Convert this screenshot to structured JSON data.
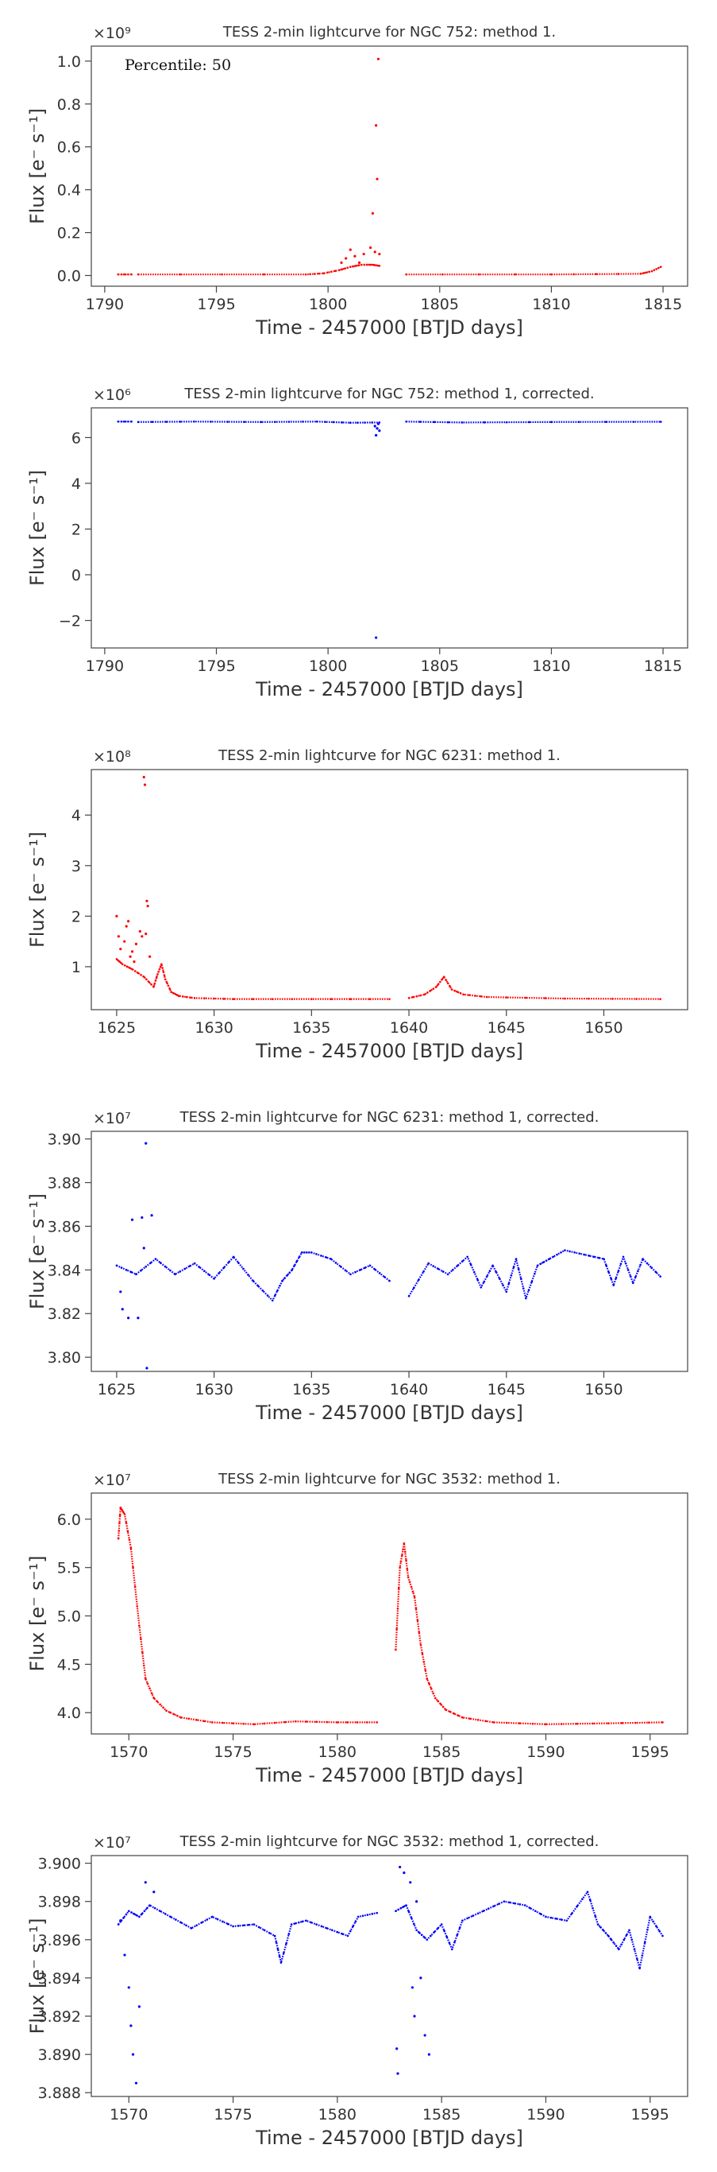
{
  "chart_data": [
    {
      "type": "scatter",
      "title": "TESS 2-min lightcurve for NGC 752: method 1.",
      "xlabel": "Time - 2457000 [BTJD days]",
      "ylabel": "Flux [e⁻ s⁻¹]",
      "multiplier": "×10⁹",
      "annotation": "Percentile: 50",
      "color": "#ff0000",
      "xlim": [
        1789.4,
        1816.1
      ],
      "ylim": [
        -0.05,
        1.07
      ],
      "xticks": [
        1790,
        1795,
        1800,
        1805,
        1810,
        1815
      ],
      "yticks": [
        0.0,
        0.2,
        0.4,
        0.6,
        0.8,
        1.0
      ],
      "ytick_labels": [
        "0.0",
        "0.2",
        "0.4",
        "0.6",
        "0.8",
        "1.0"
      ],
      "segments": [
        {
          "x": [
            1790.6,
            1791.2
          ],
          "y": [
            0.005,
            0.005
          ]
        },
        {
          "x": [
            1791.5,
            1799.0,
            1799.8,
            1800.5,
            1801.0,
            1801.5,
            1802.0,
            1802.3
          ],
          "y": [
            0.005,
            0.005,
            0.01,
            0.025,
            0.04,
            0.05,
            0.05,
            0.045
          ]
        },
        {
          "x": [
            1803.5,
            1810.0,
            1814.0,
            1814.5,
            1814.9
          ],
          "y": [
            0.005,
            0.005,
            0.008,
            0.02,
            0.04
          ]
        }
      ],
      "points": {
        "x": [
          1800.6,
          1800.8,
          1801.0,
          1801.2,
          1801.4,
          1801.6,
          1801.9,
          1802.0,
          1802.1,
          1802.15,
          1802.2,
          1802.25,
          1802.3
        ],
        "y": [
          0.06,
          0.08,
          0.12,
          0.09,
          0.06,
          0.1,
          0.13,
          0.29,
          0.11,
          0.7,
          0.45,
          1.01,
          0.1
        ]
      }
    },
    {
      "type": "scatter",
      "title": "TESS 2-min lightcurve for NGC 752: method 1, corrected.",
      "xlabel": "Time - 2457000 [BTJD days]",
      "ylabel": "Flux [e⁻ s⁻¹]",
      "multiplier": "×10⁶",
      "color": "#0000ff",
      "xlim": [
        1789.4,
        1816.1
      ],
      "ylim": [
        -3.2,
        7.3
      ],
      "xticks": [
        1790,
        1795,
        1800,
        1805,
        1810,
        1815
      ],
      "yticks": [
        -2,
        0,
        2,
        4,
        6
      ],
      "ytick_labels": [
        "−2",
        "0",
        "2",
        "4",
        "6"
      ],
      "segments": [
        {
          "x": [
            1790.6,
            1791.2
          ],
          "y": [
            6.7,
            6.7
          ]
        },
        {
          "x": [
            1791.5,
            1794.0,
            1797.0,
            1799.5,
            1801.0,
            1802.3
          ],
          "y": [
            6.68,
            6.7,
            6.68,
            6.7,
            6.65,
            6.66
          ]
        },
        {
          "x": [
            1803.5,
            1806.0,
            1810.0,
            1814.9
          ],
          "y": [
            6.7,
            6.66,
            6.68,
            6.69
          ]
        }
      ],
      "points": {
        "x": [
          1802.1,
          1802.15,
          1802.2,
          1802.25,
          1802.3,
          1802.15
        ],
        "y": [
          6.5,
          6.1,
          6.4,
          6.6,
          6.3,
          -2.75
        ]
      }
    },
    {
      "type": "scatter",
      "title": "TESS 2-min lightcurve for NGC 6231: method 1.",
      "xlabel": "Time - 2457000 [BTJD days]",
      "ylabel": "Flux [e⁻ s⁻¹]",
      "multiplier": "×10⁸",
      "color": "#ff0000",
      "xlim": [
        1623.7,
        1654.3
      ],
      "ylim": [
        0.15,
        4.9
      ],
      "xticks": [
        1625,
        1630,
        1635,
        1640,
        1645,
        1650
      ],
      "yticks": [
        1,
        2,
        3,
        4
      ],
      "ytick_labels": [
        "1",
        "2",
        "3",
        "4"
      ],
      "segments": [
        {
          "x": [
            1625.0,
            1625.3,
            1625.8,
            1626.4,
            1626.9,
            1627.1,
            1627.3,
            1627.5,
            1627.8,
            1628.2,
            1629.0,
            1631.0,
            1635.0,
            1639.0
          ],
          "y": [
            1.15,
            1.05,
            0.95,
            0.8,
            0.6,
            0.85,
            1.05,
            0.75,
            0.5,
            0.42,
            0.38,
            0.36,
            0.36,
            0.36
          ]
        },
        {
          "x": [
            1640.0,
            1640.8,
            1641.4,
            1641.8,
            1642.2,
            1642.8,
            1644.0,
            1648.0,
            1652.9
          ],
          "y": [
            0.38,
            0.45,
            0.6,
            0.8,
            0.55,
            0.45,
            0.4,
            0.37,
            0.36
          ]
        }
      ],
      "points": {
        "x": [
          1625.0,
          1625.1,
          1625.2,
          1625.4,
          1625.5,
          1625.6,
          1625.8,
          1626.0,
          1626.2,
          1626.3,
          1626.4,
          1626.45,
          1626.5,
          1626.55,
          1626.6,
          1626.7,
          1625.9,
          1625.7
        ],
        "y": [
          2.0,
          1.6,
          1.35,
          1.5,
          1.8,
          1.9,
          1.3,
          1.45,
          1.7,
          1.6,
          4.75,
          4.6,
          1.65,
          2.3,
          2.2,
          1.2,
          1.1,
          1.2
        ]
      }
    },
    {
      "type": "scatter",
      "title": "TESS 2-min lightcurve for NGC 6231: method 1, corrected.",
      "xlabel": "Time - 2457000 [BTJD days]",
      "ylabel": "Flux [e⁻ s⁻¹]",
      "multiplier": "×10⁷",
      "color": "#0000ff",
      "xlim": [
        1623.7,
        1654.3
      ],
      "ylim": [
        3.7935,
        3.9035
      ],
      "xticks": [
        1625,
        1630,
        1635,
        1640,
        1645,
        1650
      ],
      "yticks": [
        3.8,
        3.82,
        3.84,
        3.86,
        3.88,
        3.9
      ],
      "ytick_labels": [
        "3.80",
        "3.82",
        "3.84",
        "3.86",
        "3.88",
        "3.90"
      ],
      "segments": [
        {
          "x": [
            1625.0,
            1626.0,
            1627.0,
            1628.0,
            1629.0,
            1630.0,
            1631.0,
            1632.0,
            1633.0,
            1633.5,
            1634.0,
            1634.5,
            1635.0,
            1636.0,
            1637.0,
            1638.0,
            1639.0
          ],
          "y": [
            3.842,
            3.838,
            3.845,
            3.838,
            3.843,
            3.836,
            3.846,
            3.835,
            3.826,
            3.835,
            3.84,
            3.848,
            3.848,
            3.845,
            3.838,
            3.842,
            3.835
          ]
        },
        {
          "x": [
            1640.0,
            1641.0,
            1642.0,
            1643.0,
            1643.7,
            1644.3,
            1645.0,
            1645.5,
            1646.0,
            1646.6,
            1647.2,
            1648.0,
            1649.0,
            1650.0,
            1650.5,
            1651.0,
            1651.5,
            1652.0,
            1652.9
          ],
          "y": [
            3.828,
            3.843,
            3.838,
            3.846,
            3.832,
            3.842,
            3.83,
            3.845,
            3.827,
            3.842,
            3.845,
            3.849,
            3.847,
            3.845,
            3.833,
            3.846,
            3.834,
            3.845,
            3.837
          ]
        }
      ],
      "points": {
        "x": [
          1626.5,
          1626.55,
          1625.8,
          1626.1,
          1626.3,
          1625.3,
          1625.6,
          1626.8,
          1625.2,
          1626.4
        ],
        "y": [
          3.898,
          3.795,
          3.863,
          3.818,
          3.864,
          3.822,
          3.818,
          3.865,
          3.83,
          3.85
        ]
      }
    },
    {
      "type": "scatter",
      "title": "TESS 2-min lightcurve for NGC 3532: method 1.",
      "xlabel": "Time - 2457000 [BTJD days]",
      "ylabel": "Flux [e⁻ s⁻¹]",
      "multiplier": "×10⁷",
      "color": "#ff0000",
      "xlim": [
        1568.2,
        1596.8
      ],
      "ylim": [
        3.78,
        6.27
      ],
      "xticks": [
        1570,
        1575,
        1580,
        1585,
        1590,
        1595
      ],
      "yticks": [
        4.0,
        4.5,
        5.0,
        5.5,
        6.0
      ],
      "ytick_labels": [
        "4.0",
        "4.5",
        "5.0",
        "5.5",
        "6.0"
      ],
      "segments": [
        {
          "x": [
            1569.5,
            1569.6,
            1569.8,
            1570.1,
            1570.5,
            1570.8,
            1571.2,
            1571.8,
            1572.5,
            1574.0,
            1576.0,
            1578.0,
            1580.0,
            1581.9
          ],
          "y": [
            5.8,
            6.12,
            6.05,
            5.7,
            4.9,
            4.35,
            4.15,
            4.02,
            3.95,
            3.9,
            3.88,
            3.91,
            3.9,
            3.9
          ]
        },
        {
          "x": [
            1582.8,
            1583.0,
            1583.2,
            1583.4,
            1583.7,
            1584.0,
            1584.3,
            1584.7,
            1585.2,
            1586.0,
            1587.5,
            1590.0,
            1593.0,
            1595.6
          ],
          "y": [
            4.65,
            5.5,
            5.75,
            5.4,
            5.2,
            4.7,
            4.35,
            4.15,
            4.03,
            3.95,
            3.9,
            3.88,
            3.89,
            3.9
          ]
        }
      ],
      "points": {
        "x": [],
        "y": []
      }
    },
    {
      "type": "scatter",
      "title": "TESS 2-min lightcurve for NGC 3532: method 1, corrected.",
      "xlabel": "Time - 2457000 [BTJD days]",
      "ylabel": "Flux [e⁻ s⁻¹]",
      "multiplier": "×10⁷",
      "color": "#0000ff",
      "xlim": [
        1568.2,
        1596.8
      ],
      "ylim": [
        3.8878,
        3.9004
      ],
      "xticks": [
        1570,
        1575,
        1580,
        1585,
        1590,
        1595
      ],
      "yticks": [
        3.888,
        3.89,
        3.892,
        3.894,
        3.896,
        3.898,
        3.9
      ],
      "ytick_labels": [
        "3.888",
        "3.890",
        "3.892",
        "3.894",
        "3.896",
        "3.898",
        "3.900"
      ],
      "segments": [
        {
          "x": [
            1569.5,
            1570.0,
            1570.5,
            1571.0,
            1572.0,
            1573.0,
            1574.0,
            1575.0,
            1576.0,
            1577.0,
            1577.3,
            1577.8,
            1578.5,
            1579.5,
            1580.5,
            1581.0,
            1581.9
          ],
          "y": [
            3.8968,
            3.8975,
            3.8972,
            3.8978,
            3.8972,
            3.8966,
            3.8972,
            3.8967,
            3.8968,
            3.8962,
            3.8948,
            3.8968,
            3.897,
            3.8966,
            3.8962,
            3.8972,
            3.8974
          ]
        },
        {
          "x": [
            1582.8,
            1583.3,
            1583.8,
            1584.3,
            1585.0,
            1585.5,
            1586.0,
            1587.0,
            1588.0,
            1589.0,
            1590.0,
            1591.0,
            1592.0,
            1592.5,
            1593.0,
            1593.5,
            1594.0,
            1594.5,
            1595.0,
            1595.6
          ],
          "y": [
            3.8975,
            3.8978,
            3.8965,
            3.896,
            3.8968,
            3.8955,
            3.897,
            3.8975,
            3.898,
            3.8978,
            3.8972,
            3.897,
            3.8985,
            3.8968,
            3.8962,
            3.8955,
            3.8965,
            3.8945,
            3.8972,
            3.8962
          ]
        }
      ],
      "points": {
        "x": [
          1569.6,
          1569.8,
          1570.0,
          1570.1,
          1570.2,
          1570.35,
          1570.5,
          1583.0,
          1583.2,
          1583.5,
          1583.8,
          1584.0,
          1584.2,
          1584.4,
          1582.85,
          1582.9,
          1570.8,
          1571.2,
          1583.6,
          1583.7
        ],
        "y": [
          3.897,
          3.8952,
          3.8935,
          3.8915,
          3.89,
          3.8885,
          3.8925,
          3.8998,
          3.8995,
          3.899,
          3.898,
          3.894,
          3.891,
          3.89,
          3.8903,
          3.889,
          3.899,
          3.8985,
          3.8935,
          3.892
        ]
      }
    }
  ]
}
